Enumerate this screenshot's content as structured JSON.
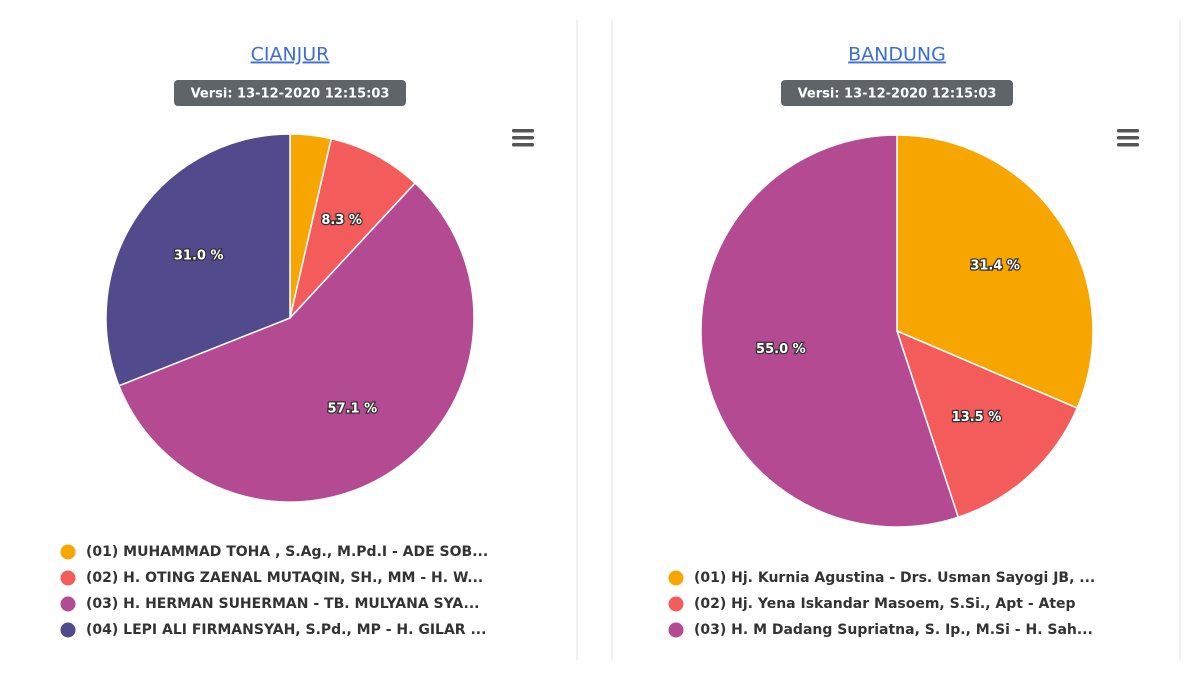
{
  "chart_data": [
    {
      "type": "pie",
      "title": "CIANJUR",
      "subtitle": "Versi: 13-12-2020 12:15:03",
      "categories": [
        "(01) MUHAMMAD TOHA , S.Ag., M.Pd.I - ADE SOB...",
        "(02) H. OTING ZAENAL MUTAQIN, SH., MM - H. W...",
        "(03) H. HERMAN SUHERMAN - TB. MULYANA SYA...",
        "(04) LEPI ALI FIRMANSYAH, S.Pd., MP - H. GILAR ..."
      ],
      "values": [
        3.6,
        8.3,
        57.1,
        31.0
      ],
      "value_labels": [
        null,
        "8.3 %",
        "57.1 %",
        "31.0 %"
      ],
      "colors": [
        "#f7a600",
        "#f45b5b",
        "#b44b92",
        "#514a8c"
      ]
    },
    {
      "type": "pie",
      "title": "BANDUNG",
      "subtitle": "Versi: 13-12-2020 12:15:03",
      "categories": [
        "(01) Hj. Kurnia Agustina - Drs. Usman Sayogi JB, ...",
        "(02) Hj. Yena Iskandar Masoem, S.Si., Apt - Atep",
        "(03) H. M Dadang Supriatna, S. Ip., M.Si - H. Sah..."
      ],
      "values": [
        31.4,
        13.5,
        55.0
      ],
      "value_labels": [
        "31.4 %",
        "13.5 %",
        "55.0 %"
      ],
      "colors": [
        "#f7a600",
        "#f45b5b",
        "#b44b92"
      ]
    }
  ]
}
